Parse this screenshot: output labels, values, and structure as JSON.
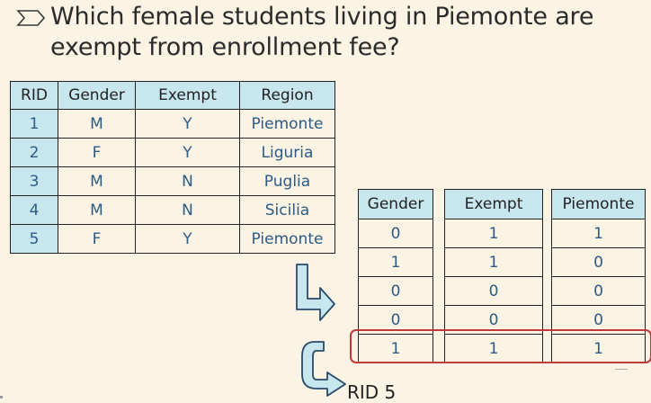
{
  "question": "Which female students living in Piemonte are exempt from enrollment fee?",
  "question_line1": "Which female students living in Piemonte are",
  "question_line2": "exempt from enrollment fee?",
  "students_table": {
    "headers": [
      "RID",
      "Gender",
      "Exempt",
      "Region"
    ],
    "rows": [
      [
        "1",
        "M",
        "Y",
        "Piemonte"
      ],
      [
        "2",
        "F",
        "Y",
        "Liguria"
      ],
      [
        "3",
        "M",
        "N",
        "Puglia"
      ],
      [
        "4",
        "M",
        "N",
        "Sicilia"
      ],
      [
        "5",
        "F",
        "Y",
        "Piemonte"
      ]
    ]
  },
  "bitmaps": {
    "gender": {
      "header": "Gender",
      "bits": [
        "0",
        "1",
        "0",
        "0",
        "1"
      ]
    },
    "exempt": {
      "header": "Exempt",
      "bits": [
        "1",
        "1",
        "0",
        "0",
        "1"
      ]
    },
    "piemonte": {
      "header": "Piemonte",
      "bits": [
        "1",
        "0",
        "0",
        "0",
        "1"
      ]
    }
  },
  "result_label": "RID 5",
  "colors": {
    "background": "#fbf3e3",
    "header_fill": "#c7e6ee",
    "cell_text": "#2c5b86",
    "highlight": "#c0393b",
    "arrow_fill": "#c7e6ee",
    "arrow_stroke": "#2a4a6a"
  },
  "icons": {
    "bullet": "chevron-right-icon",
    "down_arrow": "bent-arrow-down-right-icon",
    "result_arrow": "u-turn-arrow-icon"
  }
}
